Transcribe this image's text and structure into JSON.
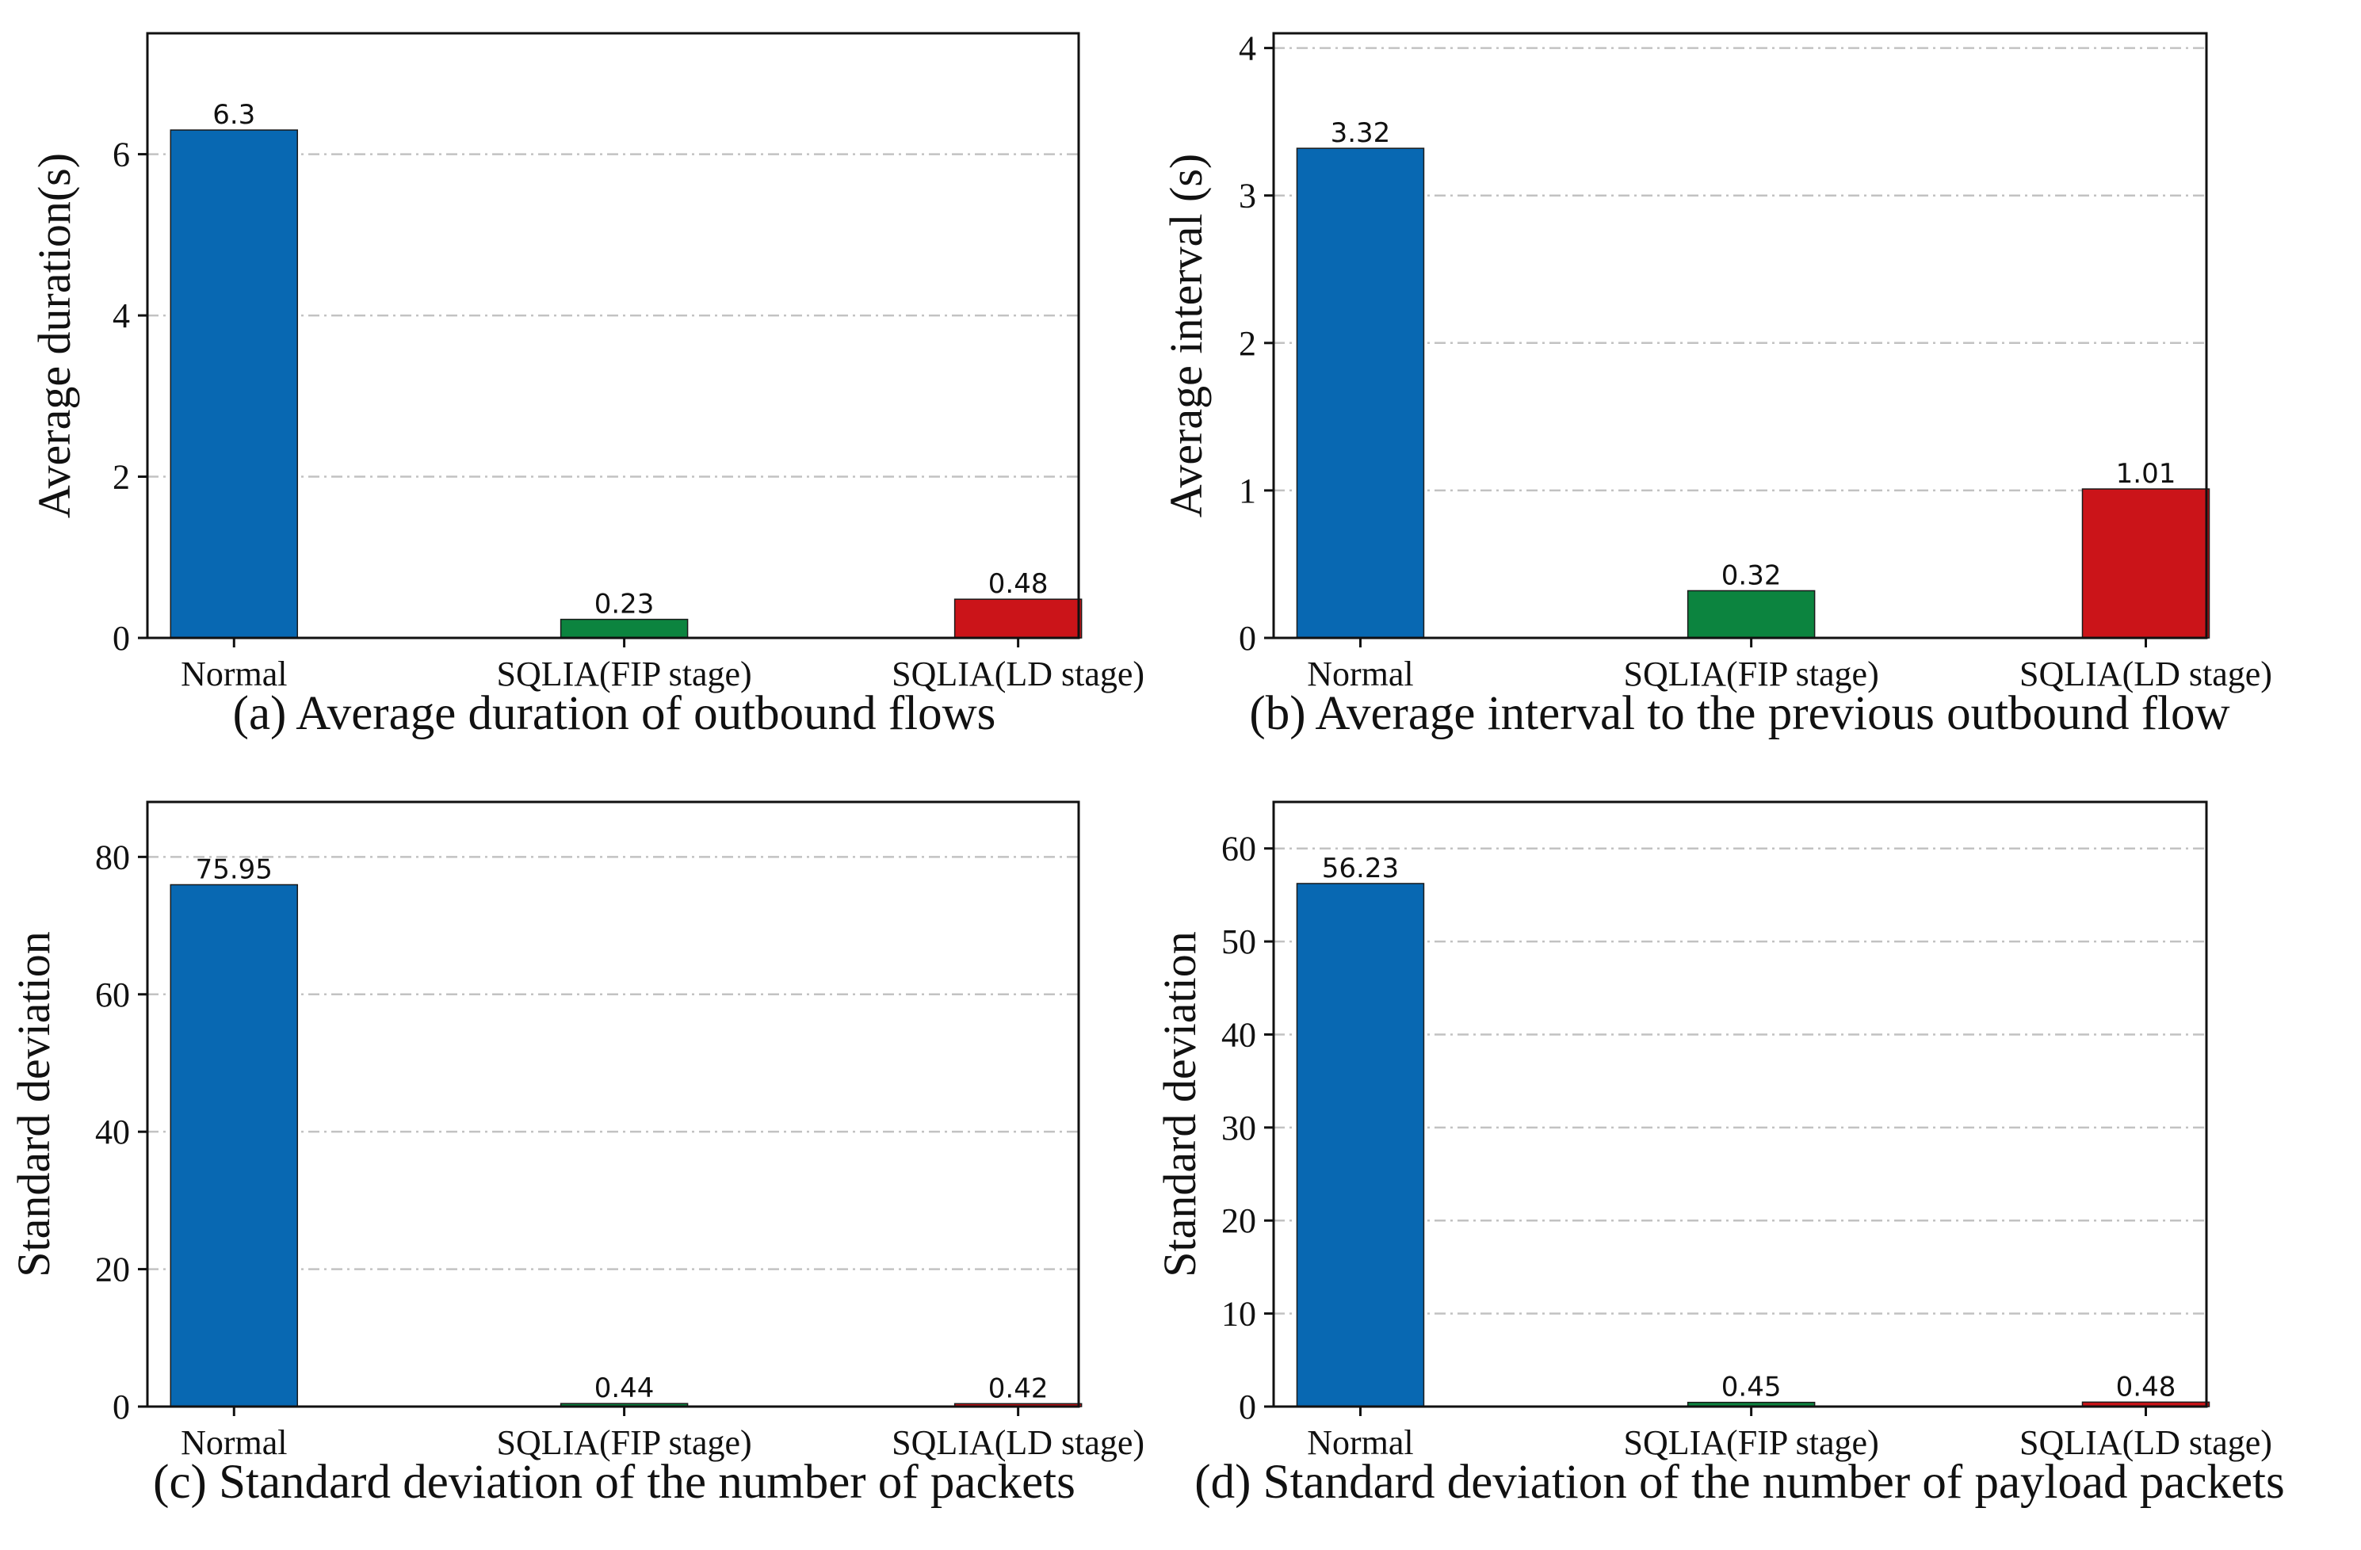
{
  "colors": {
    "normal": "#0868b2",
    "fip": "#0c843f",
    "ld": "#cb1419",
    "grid": "#c2c2c2",
    "axis": "#111111"
  },
  "chart_data": [
    {
      "id": "a",
      "type": "bar",
      "categories": [
        "Normal",
        "SQLIA(FIP stage)",
        "SQLIA(LD stage)"
      ],
      "values": [
        6.3,
        0.23,
        0.48
      ],
      "value_labels": [
        "6.3",
        "0.23",
        "0.48"
      ],
      "title": "(a) Average duration of outbound flows",
      "xlabel": "",
      "ylabel": "Average duration(s)",
      "ylim": [
        0,
        7.5
      ],
      "yticks": [
        0,
        2,
        4,
        6
      ],
      "grid": "y, dash-dot"
    },
    {
      "id": "b",
      "type": "bar",
      "categories": [
        "Normal",
        "SQLIA(FIP stage)",
        "SQLIA(LD stage)"
      ],
      "values": [
        3.32,
        0.32,
        1.01
      ],
      "value_labels": [
        "3.32",
        "0.32",
        "1.01"
      ],
      "title": "(b) Average interval to the previous outbound flow",
      "xlabel": "",
      "ylabel": "Average interval (s)",
      "ylim": [
        0,
        4.1
      ],
      "yticks": [
        0,
        1,
        2,
        3,
        4
      ],
      "grid": "y, dash-dot"
    },
    {
      "id": "c",
      "type": "bar",
      "categories": [
        "Normal",
        "SQLIA(FIP stage)",
        "SQLIA(LD stage)"
      ],
      "values": [
        75.95,
        0.44,
        0.42
      ],
      "value_labels": [
        "75.95",
        "0.44",
        "0.42"
      ],
      "title": "(c) Standard deviation of the number of packets",
      "xlabel": "",
      "ylabel": "Standard deviation",
      "ylim": [
        0,
        88
      ],
      "yticks": [
        0,
        20,
        40,
        60,
        80
      ],
      "grid": "y, dash-dot"
    },
    {
      "id": "d",
      "type": "bar",
      "categories": [
        "Normal",
        "SQLIA(FIP stage)",
        "SQLIA(LD stage)"
      ],
      "values": [
        56.23,
        0.45,
        0.48
      ],
      "value_labels": [
        "56.23",
        "0.45",
        "0.48"
      ],
      "title": "(d) Standard deviation of the number of payload packets",
      "xlabel": "",
      "ylabel": "Standard deviation",
      "ylim": [
        0,
        65
      ],
      "yticks": [
        0,
        10,
        20,
        30,
        40,
        50,
        60
      ],
      "grid": "y, dash-dot"
    }
  ]
}
